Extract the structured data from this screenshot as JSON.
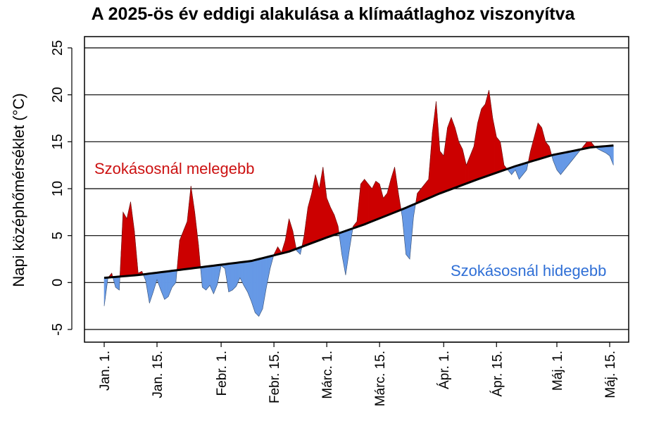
{
  "chart_data": {
    "type": "area",
    "title": "A 2025-ös év eddigi alakulása a klímaátlaghoz viszonyítva",
    "xlabel": "",
    "ylabel": "Napi középhőmérséklet (°C)",
    "ylim": [
      -7,
      25
    ],
    "yticks": [
      -5,
      0,
      5,
      10,
      15,
      20,
      25
    ],
    "grid": "horizontal",
    "x_dates": [
      "2025-01-01",
      "2025-01-15",
      "2025-02-01",
      "2025-02-15",
      "2025-03-01",
      "2025-03-15",
      "2025-04-01",
      "2025-04-15",
      "2025-05-01",
      "2025-05-15"
    ],
    "x_ticks": [
      {
        "day": 1,
        "label": "Jan. 1."
      },
      {
        "day": 15,
        "label": "Jan. 15."
      },
      {
        "day": 32,
        "label": "Febr. 1."
      },
      {
        "day": 46,
        "label": "Febr. 15."
      },
      {
        "day": 60,
        "label": "Márc. 1."
      },
      {
        "day": 74,
        "label": "Márc. 15."
      },
      {
        "day": 91,
        "label": "Ápr. 1."
      },
      {
        "day": 105,
        "label": "Ápr. 15."
      },
      {
        "day": 121,
        "label": "Máj. 1."
      },
      {
        "day": 135,
        "label": "Máj. 15."
      }
    ],
    "series": [
      {
        "name": "Napi középhőmérséklet",
        "x": [
          1,
          2,
          3,
          4,
          5,
          6,
          7,
          8,
          9,
          10,
          11,
          12,
          13,
          14,
          15,
          16,
          17,
          18,
          19,
          20,
          21,
          22,
          23,
          24,
          25,
          26,
          27,
          28,
          29,
          30,
          31,
          32,
          33,
          34,
          35,
          36,
          37,
          38,
          39,
          40,
          41,
          42,
          43,
          44,
          45,
          46,
          47,
          48,
          49,
          50,
          51,
          52,
          53,
          54,
          55,
          56,
          57,
          58,
          59,
          60,
          61,
          62,
          63,
          64,
          65,
          66,
          67,
          68,
          69,
          70,
          71,
          72,
          73,
          74,
          75,
          76,
          77,
          78,
          79,
          80,
          81,
          82,
          83,
          84,
          85,
          86,
          87,
          88,
          89,
          90,
          91,
          92,
          93,
          94,
          95,
          96,
          97,
          98,
          99,
          100,
          101,
          102,
          103,
          104,
          105,
          106,
          107,
          108,
          109,
          110,
          111,
          112,
          113,
          114,
          115,
          116,
          117,
          118,
          119,
          120,
          121,
          122,
          123,
          124,
          125,
          126,
          127,
          128,
          129,
          130,
          131,
          132,
          133,
          134,
          135,
          136
        ],
        "values": [
          -2.5,
          0.5,
          1.0,
          -0.5,
          -0.8,
          7.5,
          6.8,
          8.6,
          5.5,
          1.0,
          1.2,
          0.2,
          -2.2,
          -1.0,
          0.3,
          -0.8,
          -1.8,
          -1.5,
          -0.5,
          0.0,
          4.5,
          5.5,
          6.5,
          10.3,
          7.5,
          4.0,
          -0.5,
          -0.8,
          -0.3,
          -1.2,
          -0.2,
          1.8,
          1.5,
          -1.0,
          -0.8,
          -0.4,
          0.5,
          -0.3,
          -1.0,
          -2.0,
          -3.2,
          -3.6,
          -2.8,
          -0.5,
          1.5,
          3.0,
          3.8,
          3.2,
          4.5,
          6.8,
          5.5,
          3.4,
          3.0,
          5.0,
          8.0,
          9.5,
          11.5,
          10.0,
          12.3,
          9.0,
          8.0,
          7.2,
          6.0,
          3.0,
          0.8,
          3.5,
          6.0,
          6.5,
          10.5,
          11.0,
          10.5,
          10.0,
          10.8,
          10.5,
          9.0,
          9.5,
          11.0,
          12.3,
          9.5,
          7.0,
          3.0,
          2.5,
          7.0,
          9.5,
          10.0,
          10.5,
          11.0,
          16.0,
          19.3,
          14.0,
          13.5,
          16.5,
          17.6,
          16.5,
          15.0,
          14.2,
          12.5,
          13.5,
          14.5,
          17.0,
          18.5,
          19.0,
          20.5,
          17.5,
          15.5,
          15.0,
          12.5,
          12.0,
          11.5,
          12.0,
          11.0,
          11.5,
          12.0,
          14.0,
          15.5,
          17.0,
          16.5,
          15.0,
          14.5,
          13.0,
          12.0,
          11.5,
          12.0,
          12.5,
          13.0,
          13.5,
          14.0,
          14.5,
          15.0,
          15.0,
          14.5,
          14.2,
          14.0,
          13.8,
          13.5,
          12.5
        ]
      },
      {
        "name": "Klímaátlag",
        "x": [
          1,
          10,
          20,
          30,
          40,
          50,
          60,
          70,
          80,
          90,
          100,
          110,
          120,
          130,
          136
        ],
        "values": [
          0.5,
          0.8,
          1.3,
          1.8,
          2.3,
          3.3,
          4.8,
          6.2,
          7.8,
          9.5,
          11.0,
          12.4,
          13.6,
          14.4,
          14.6
        ]
      }
    ]
  },
  "annotations": {
    "warm_label": "Szokásosnál melegebb",
    "cold_label": "Szokásosnál hidegebb"
  },
  "colors": {
    "warm": "#cc0000",
    "cold": "#6699e6",
    "warm_text": "#cc1111",
    "cold_text": "#2f6fd6",
    "grid": "#000000",
    "line": "#000000"
  }
}
